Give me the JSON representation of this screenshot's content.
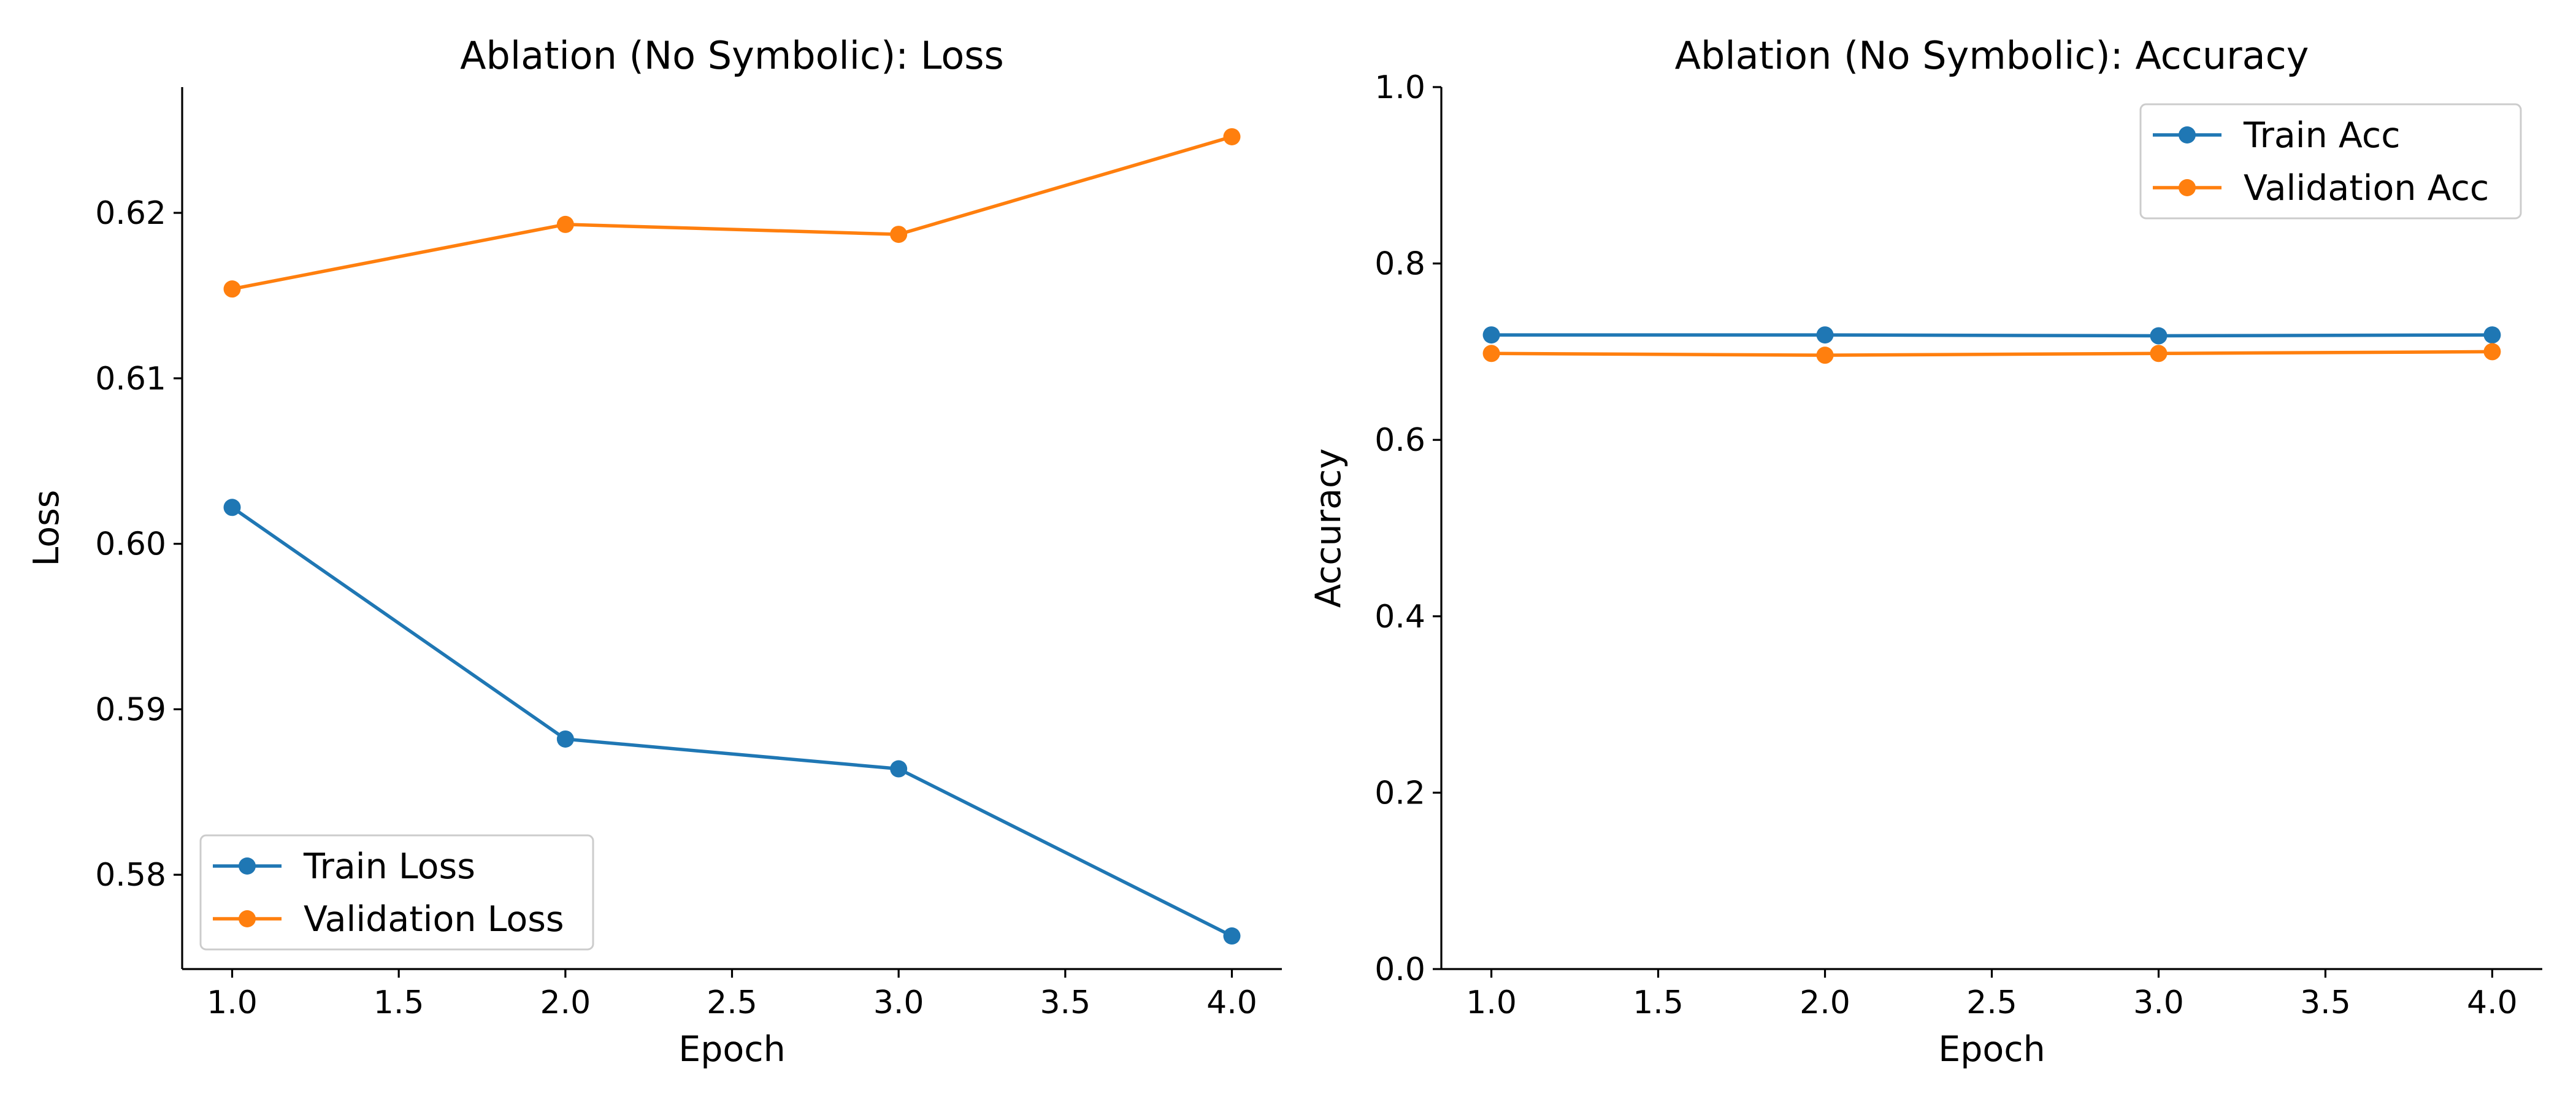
{
  "chart_data": [
    {
      "type": "line",
      "title": "Ablation (No Symbolic): Loss",
      "xlabel": "Epoch",
      "ylabel": "Loss",
      "x": [
        1.0,
        2.0,
        3.0,
        4.0
      ],
      "xlim": [
        0.85,
        4.15
      ],
      "ylim": [
        0.5743,
        0.6276
      ],
      "xticks": [
        1.0,
        1.5,
        2.0,
        2.5,
        3.0,
        3.5,
        4.0
      ],
      "xtick_labels": [
        "1.0",
        "1.5",
        "2.0",
        "2.5",
        "3.0",
        "3.5",
        "4.0"
      ],
      "yticks": [
        0.58,
        0.59,
        0.6,
        0.61,
        0.62
      ],
      "ytick_labels": [
        "0.58",
        "0.59",
        "0.60",
        "0.61",
        "0.62"
      ],
      "series": [
        {
          "name": "Train Loss",
          "color": "#1f77b4",
          "marker": "circle",
          "values": [
            0.6022,
            0.5882,
            0.5864,
            0.5763
          ]
        },
        {
          "name": "Validation Loss",
          "color": "#ff7f0e",
          "marker": "circle",
          "values": [
            0.6154,
            0.6193,
            0.6187,
            0.6246
          ]
        }
      ],
      "grid": false,
      "legend": "lower left"
    },
    {
      "type": "line",
      "title": "Ablation (No Symbolic): Accuracy",
      "xlabel": "Epoch",
      "ylabel": "Accuracy",
      "x": [
        1.0,
        2.0,
        3.0,
        4.0
      ],
      "xlim": [
        0.85,
        4.15
      ],
      "ylim": [
        0.0,
        1.0
      ],
      "xticks": [
        1.0,
        1.5,
        2.0,
        2.5,
        3.0,
        3.5,
        4.0
      ],
      "xtick_labels": [
        "1.0",
        "1.5",
        "2.0",
        "2.5",
        "3.0",
        "3.5",
        "4.0"
      ],
      "yticks": [
        0.0,
        0.2,
        0.4,
        0.6,
        0.8,
        1.0
      ],
      "ytick_labels": [
        "0.0",
        "0.2",
        "0.4",
        "0.6",
        "0.8",
        "1.0"
      ],
      "series": [
        {
          "name": "Train Acc",
          "color": "#1f77b4",
          "marker": "circle",
          "values": [
            0.719,
            0.719,
            0.718,
            0.719
          ]
        },
        {
          "name": "Validation Acc",
          "color": "#ff7f0e",
          "marker": "circle",
          "values": [
            0.698,
            0.696,
            0.698,
            0.7
          ]
        }
      ],
      "grid": false,
      "legend": "upper right"
    }
  ]
}
